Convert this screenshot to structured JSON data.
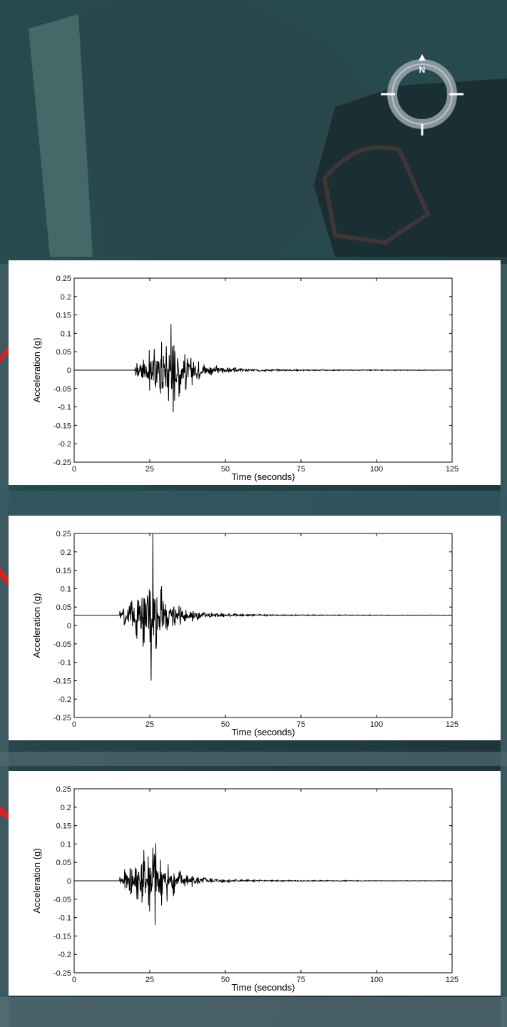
{
  "background": {
    "description_colors": {
      "water": "#1d3a3f",
      "land": "#43606a",
      "shore": "#2e4b4d"
    },
    "compass": {
      "north_label": "N",
      "icon": "compass-rose-icon"
    }
  },
  "chart_data": [
    {
      "type": "line",
      "xlabel": "Time (seconds)",
      "ylabel": "Acceleration (g)",
      "xlim": [
        0,
        125
      ],
      "ylim": [
        -0.25,
        0.25
      ],
      "xticks": [
        "0",
        "25",
        "50",
        "75",
        "100",
        "125"
      ],
      "yticks": [
        "0.25",
        "0.2",
        "0.15",
        "0.1",
        "0.05",
        "0",
        "-0.05",
        "-0.1",
        "-0.15",
        "-0.2",
        "-0.25"
      ],
      "baseline": 0,
      "onset": 20,
      "peak_time": 32,
      "peak_max": 0.125,
      "peak_min": -0.115,
      "series": [
        {
          "values_summary": "ground motion record",
          "color": "#000000"
        }
      ]
    },
    {
      "type": "line",
      "xlabel": "Time (seconds)",
      "ylabel": "Acceleration (g)",
      "xlim": [
        0,
        125
      ],
      "ylim": [
        -0.25,
        0.25
      ],
      "xticks": [
        "0",
        "25",
        "50",
        "75",
        "100",
        "125"
      ],
      "yticks": [
        "0.25",
        "0.2",
        "0.15",
        "0.1",
        "0.05",
        "0",
        "-0.05",
        "-0.1",
        "-0.15",
        "-0.2",
        "-0.25"
      ],
      "baseline": 0.028,
      "onset": 15,
      "peak_time": 26,
      "peak_max": 0.25,
      "peak_min": -0.15,
      "series": [
        {
          "values_summary": "ground motion record",
          "color": "#000000"
        }
      ]
    },
    {
      "type": "line",
      "xlabel": "Time (seconds)",
      "ylabel": "Acceleration (g)",
      "xlim": [
        0,
        125
      ],
      "ylim": [
        -0.25,
        0.25
      ],
      "xticks": [
        "0",
        "25",
        "50",
        "75",
        "100",
        "125"
      ],
      "yticks": [
        "0.25",
        "0.2",
        "0.15",
        "0.1",
        "0.05",
        "0",
        "-0.05",
        "-0.1",
        "-0.15",
        "-0.2",
        "-0.25"
      ],
      "baseline": 0,
      "onset": 15,
      "peak_time": 26,
      "peak_max": 0.09,
      "peak_min": -0.12,
      "series": [
        {
          "values_summary": "ground motion record",
          "color": "#000000"
        }
      ]
    }
  ]
}
